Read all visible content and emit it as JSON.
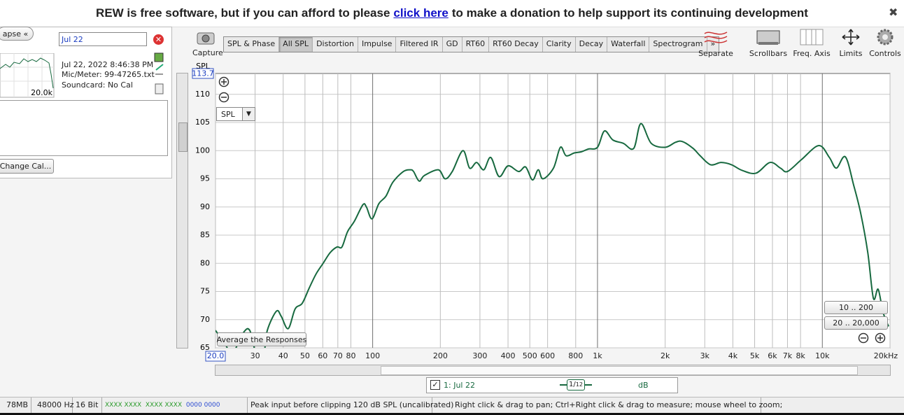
{
  "banner": {
    "before": "REW is free software, but if you can afford to please",
    "link": "click here",
    "after": "to make a donation to help support its continuing development"
  },
  "measurement_panel": {
    "collapse": "apse",
    "name": "Jul 22",
    "thumbnail_label": "20.0k",
    "date": "Jul 22, 2022 8:46:38 PM",
    "mic": "Mic/Meter: 99-47265.txt",
    "soundcard": "Soundcard: No Cal",
    "change_cal": "Change Cal..."
  },
  "toolbar": {
    "capture": "Capture",
    "tabs": [
      "SPL & Phase",
      "All SPL",
      "Distortion",
      "Impulse",
      "Filtered IR",
      "GD",
      "RT60",
      "RT60 Decay",
      "Clarity",
      "Decay",
      "Waterfall",
      "Spectrogram"
    ],
    "selected_tab": "All SPL",
    "more": "»",
    "buttons": [
      "Separate",
      "Scrollbars",
      "Freq. Axis",
      "Limits",
      "Controls"
    ]
  },
  "graph_controls": {
    "selector": "SPL",
    "average": "Average the Responses",
    "ranges": [
      "10 .. 200",
      "20 .. 20,000"
    ]
  },
  "chart_data": {
    "type": "line",
    "ylabel": "SPL",
    "xscale": "log",
    "grid": true,
    "xlim": [
      20,
      20000
    ],
    "ylim": [
      65,
      113.7
    ],
    "yticks": [
      65,
      70,
      75,
      80,
      85,
      90,
      95,
      100,
      105,
      110
    ],
    "xticks": [
      {
        "value": 20,
        "label": "20.0"
      },
      30,
      40,
      50,
      60,
      70,
      80,
      100,
      200,
      300,
      400,
      500,
      600,
      800,
      {
        "value": 1000,
        "label": "1k"
      },
      {
        "value": 2000,
        "label": "2k"
      },
      {
        "value": 3000,
        "label": "3k"
      },
      {
        "value": 4000,
        "label": "4k"
      },
      {
        "value": 5000,
        "label": "5k"
      },
      {
        "value": 6000,
        "label": "6k"
      },
      {
        "value": 7000,
        "label": "7k"
      },
      {
        "value": 8000,
        "label": "8k"
      },
      {
        "value": 10000,
        "label": "10k"
      },
      {
        "value": 20000,
        "label": "20kHz"
      }
    ],
    "x": [
      20,
      22.1,
      23.8,
      26.4,
      28.4,
      30.5,
      32.8,
      34,
      37.3,
      39.2,
      42.1,
      45.2,
      48.6,
      52.2,
      56,
      60.2,
      64.7,
      69.4,
      73,
      77.3,
      83,
      90.5,
      93.8,
      99.3,
      106.6,
      114.5,
      123,
      137,
      147,
      152,
      161,
      170,
      196,
      210,
      226,
      252,
      270,
      290,
      312,
      335,
      365,
      400,
      446,
      479,
      514,
      545,
      572,
      637,
      684,
      725,
      789,
      848,
      912,
      1000,
      1074,
      1170,
      1303,
      1449,
      1559,
      1734,
      2000,
      2228,
      2393,
      2663,
      2861,
      3185,
      3548,
      3946,
      4395,
      5070,
      5848,
      6516,
      6998,
      8072,
      9645,
      10746,
      11540,
      12660,
      13800,
      14830,
      15930,
      16870,
      17710,
      18620,
      19720
    ],
    "series": [
      {
        "name": "1: Jul 22",
        "color": "#17693f",
        "values": [
          68.1,
          65.6,
          64,
          67.5,
          68.1,
          63.5,
          64,
          68.1,
          71.5,
          70.6,
          68.4,
          71.9,
          72.9,
          75.6,
          78.1,
          80,
          81.9,
          82.9,
          82.9,
          85.6,
          87.5,
          90.4,
          90,
          87.9,
          90.6,
          91.9,
          94.4,
          96.3,
          96.6,
          96.3,
          94.6,
          95.6,
          96.6,
          95,
          96.3,
          100,
          96.9,
          97.9,
          96.6,
          98.8,
          95.4,
          97.3,
          96.3,
          97.1,
          94.8,
          96.6,
          95,
          96.9,
          100.6,
          99.1,
          99.6,
          99.8,
          100.3,
          100.6,
          103.5,
          101.9,
          101.3,
          100.4,
          104.8,
          101.3,
          100.6,
          101.5,
          101.6,
          100.4,
          99.1,
          97.5,
          97.9,
          97.5,
          96.5,
          96,
          97.9,
          96.9,
          96.3,
          98.4,
          100.9,
          98.8,
          96.9,
          98.9,
          93.8,
          88.8,
          81.9,
          73.8,
          75.4,
          71.3,
          68.8
        ]
      }
    ]
  },
  "legend": {
    "smoothing_num": "1",
    "smoothing_den": "12",
    "unit": "dB"
  },
  "status_bar": [
    "78MB",
    "48000 Hz",
    "16 Bit",
    "XXXX XXXX",
    "XXXX XXXX",
    "0000 0000",
    "Peak input before clipping 120 dB SPL (uncalibrated)",
    "Right click & drag to pan; Ctrl+Right click & drag to measure; mouse wheel to zoom;"
  ]
}
